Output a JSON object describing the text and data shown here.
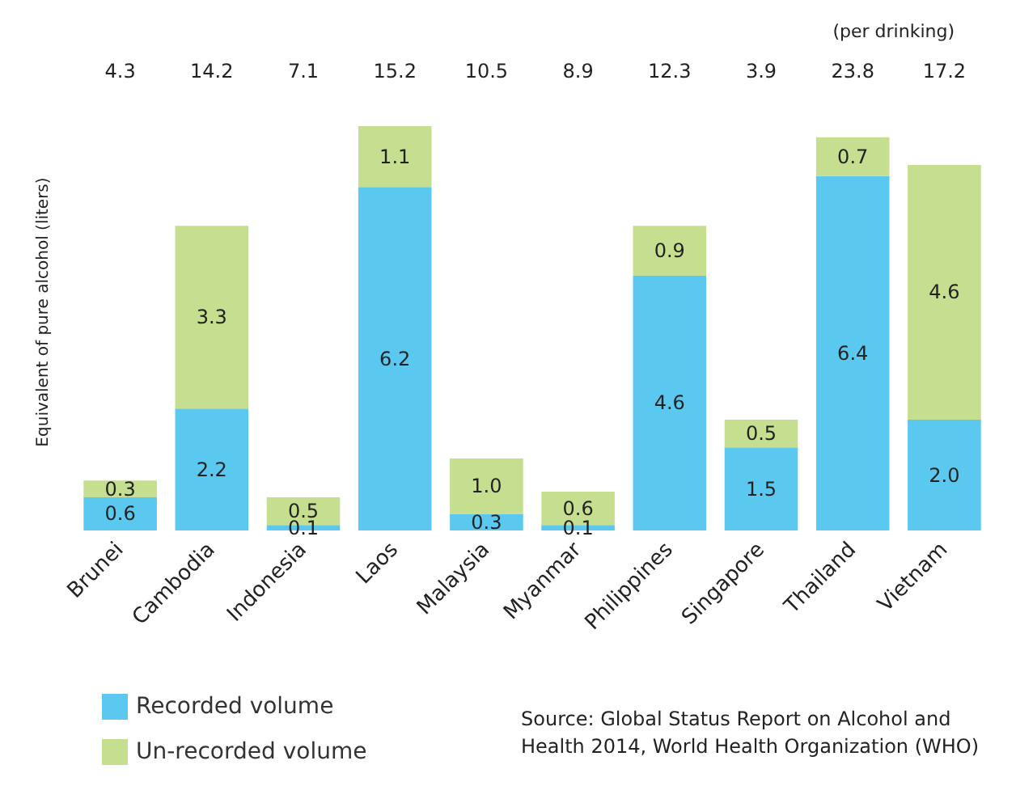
{
  "chart_data": {
    "type": "bar",
    "ylabel": "Equivalent of pure alcohol (liters)",
    "categories": [
      "Brunei",
      "Cambodia",
      "Indonesia",
      "Laos",
      "Malaysia",
      "Myanmar",
      "Philippines",
      "Singapore",
      "Thailand",
      "Vietnam"
    ],
    "stacked": true,
    "legend": "bottom left",
    "series": [
      {
        "name": "Recorded volume",
        "color": "#5bc8f0",
        "values": [
          0.6,
          2.2,
          0.1,
          6.2,
          0.3,
          0.1,
          4.6,
          1.5,
          6.4,
          2.0
        ],
        "value_labels": [
          "0.6",
          "2.2",
          "0.1",
          "6.2",
          "0.3",
          "0.1",
          "4.6",
          "1.5",
          "6.4",
          "2.0"
        ]
      },
      {
        "name": "Un-recorded volume",
        "color": "#c5de8f",
        "values": [
          0.3,
          3.3,
          0.5,
          1.1,
          1.0,
          0.6,
          0.9,
          0.5,
          0.7,
          4.6
        ],
        "value_labels": [
          "0.3",
          "3.3",
          "0.5",
          "1.1",
          "1.0",
          "0.6",
          "0.9",
          "0.5",
          "0.7",
          "4.6"
        ]
      }
    ],
    "annotations": [
      "(per drinking)",
      "4.3",
      "14.2",
      "7.1",
      "15.2",
      "10.5",
      "8.9",
      "12.3",
      "3.9",
      "23.8",
      "17.2",
      "Source: Global Status Report on Alcohol and Health 2014, World Health Organization (WHO)"
    ]
  }
}
